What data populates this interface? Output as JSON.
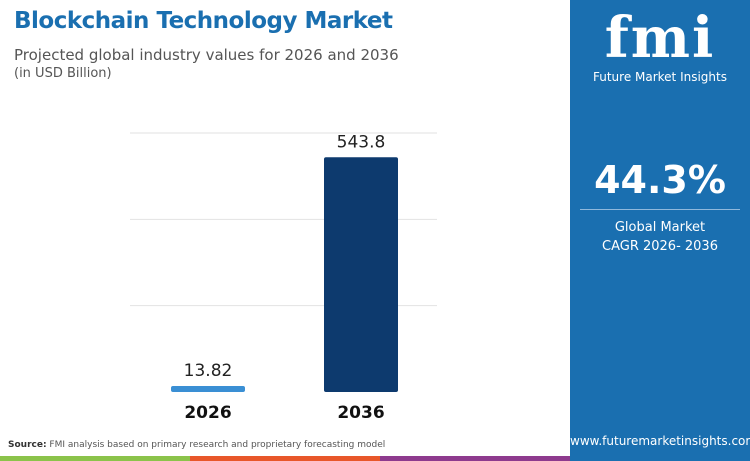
{
  "header": {
    "title": "Blockchain Technology Market",
    "subtitle": "Projected global industry values for 2026 and 2036",
    "unit": "(in USD Billion)"
  },
  "chart_data": {
    "type": "bar",
    "categories": [
      "2026",
      "2036"
    ],
    "values": [
      13.82,
      543.8
    ],
    "data_labels": [
      "13.82",
      "543.8"
    ],
    "ylim": [
      0,
      600
    ],
    "grid": true,
    "colors": [
      "#3a8fd4",
      "#0d3a6e"
    ]
  },
  "panel": {
    "logo_text": "fmi",
    "logo_name": "Future Market Insights",
    "cagr": "44.3%",
    "cagr_label_1": "Global Market",
    "cagr_label_2": "CAGR 2026- 2036",
    "url": "www.futuremarketinsights.com",
    "color": "#1a6fb0"
  },
  "footer": {
    "source_label": "Source:",
    "source_text": " FMI analysis based on primary research and proprietary forecasting model",
    "stripe_colors": [
      "#8bc34a",
      "#e8572a",
      "#8e3a8e"
    ]
  }
}
